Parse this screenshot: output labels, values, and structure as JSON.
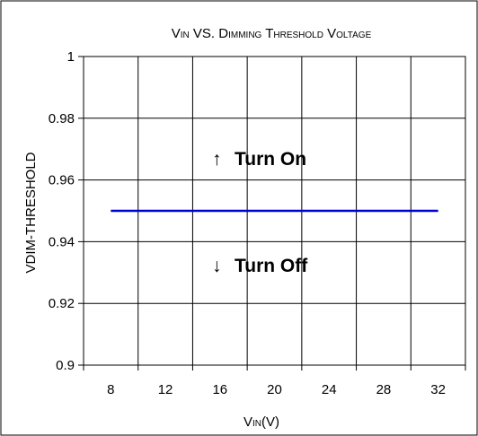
{
  "chart_data": {
    "type": "line",
    "title": {
      "parts": [
        {
          "text": "V",
          "sub": false
        },
        {
          "text": "IN",
          "sub": true
        },
        {
          "text": " VS. D",
          "sub": false
        },
        {
          "text": "IMMING",
          "sub": true
        },
        {
          "text": " T",
          "sub": false
        },
        {
          "text": "HRESHOLD",
          "sub": true
        },
        {
          "text": " V",
          "sub": false
        },
        {
          "text": "OLTAGE",
          "sub": true
        }
      ]
    },
    "xlabel": {
      "parts": [
        {
          "text": "V",
          "sub": false
        },
        {
          "text": "IN",
          "sub": true
        },
        {
          "text": "(V)",
          "sub": false
        }
      ]
    },
    "ylabel": "VDIM-THRESHOLD",
    "x_categories": [
      "8",
      "12",
      "16",
      "20",
      "24",
      "28",
      "32"
    ],
    "y_ticks": [
      "0.9",
      "0.92",
      "0.94",
      "0.96",
      "0.98",
      "1"
    ],
    "ylim": [
      0.9,
      1.0
    ],
    "grid": true,
    "series": [
      {
        "x": [
          8,
          32
        ],
        "y": [
          0.95,
          0.95
        ],
        "color": "#0000cc"
      }
    ],
    "annotations": {
      "turn_on": {
        "arrow": "↑",
        "label": "Turn On"
      },
      "turn_off": {
        "arrow": "↓",
        "label": "Turn Off"
      }
    }
  }
}
